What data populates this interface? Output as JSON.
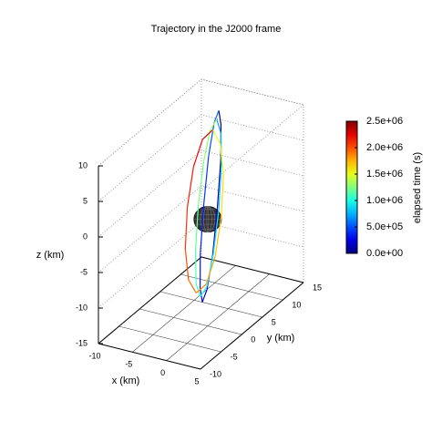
{
  "chart_data": {
    "type": "line3d",
    "title": "Trajectory in the J2000 frame",
    "xlabel": "x (km)",
    "ylabel": "y (km)",
    "zlabel": "z (km)",
    "xlim": [
      -10,
      5
    ],
    "ylim": [
      -10,
      15
    ],
    "zlim": [
      -15,
      10
    ],
    "xticks": [
      -10,
      -5,
      0,
      5
    ],
    "yticks": [
      -10,
      -5,
      0,
      5,
      10,
      15
    ],
    "zticks": [
      -15,
      -10,
      -5,
      0,
      5,
      10
    ],
    "grid": true,
    "colormap": "jet",
    "colorbar": {
      "label": "elapsed time (s)",
      "lim": [
        0,
        2500000
      ],
      "ticks": [
        {
          "value": 0,
          "label": "0.0e+00"
        },
        {
          "value": 500000,
          "label": "5.0e+05"
        },
        {
          "value": 1000000,
          "label": "1.0e+06"
        },
        {
          "value": 1500000,
          "label": "1.5e+06"
        },
        {
          "value": 2000000,
          "label": "2.0e+06"
        },
        {
          "value": 2500000,
          "label": "2.5e+06"
        }
      ]
    },
    "series": [
      {
        "x": [
          0,
          0.5,
          0.9,
          1,
          0.9,
          0.5,
          0,
          -0.5,
          -0.9,
          -1,
          -0.9,
          -0.5
        ],
        "y": [
          2.7,
          2.4,
          1.7,
          0.7,
          -0.3,
          -1,
          -1.3,
          -1,
          -0.3,
          0.7,
          1.7,
          2.4
        ],
        "z": [
          14,
          12.3,
          7.8,
          1.5,
          -4.8,
          -9.3,
          -11,
          -9.3,
          -4.8,
          1.5,
          7.8,
          12.3
        ],
        "t": [
          0,
          50000,
          100000,
          150000,
          200000,
          250000,
          300000,
          350000,
          400000,
          450000,
          500000,
          550000
        ]
      },
      {
        "x": [
          0,
          0.8,
          1.3,
          1.5,
          1.3,
          0.8,
          0,
          -0.8,
          -1.3,
          -1.5,
          -1.3,
          -0.8
        ],
        "y": [
          2.2,
          1.9,
          1.2,
          0.2,
          -0.8,
          -1.5,
          -1.8,
          -1.5,
          -0.8,
          0.2,
          1.2,
          1.9
        ],
        "z": [
          13,
          11.4,
          7.3,
          1.5,
          -4.3,
          -8.5,
          -10,
          -8.5,
          -4.3,
          1.5,
          7.3,
          11.4
        ],
        "t": [
          700000,
          760000,
          820000,
          880000,
          940000,
          1000000,
          1060000,
          1120000,
          1180000,
          1240000,
          1300000,
          1360000
        ]
      },
      {
        "x": [
          0,
          1.3,
          2.2,
          2.5,
          2.2,
          1.3,
          0,
          -1.3,
          -2.2,
          -2.5,
          -2.2,
          -1.3
        ],
        "y": [
          1.2,
          0.9,
          0.2,
          -0.8,
          -1.8,
          -2.5,
          -2.8,
          -2.5,
          -1.8,
          -0.8,
          0.2,
          0.9
        ],
        "z": [
          12,
          10.5,
          6.8,
          1.5,
          -3.8,
          -7.6,
          -9,
          -7.6,
          -3.8,
          1.5,
          6.8,
          10.5
        ],
        "t": [
          1500000,
          1570000,
          1640000,
          1710000,
          1780000,
          1850000,
          1920000,
          1990000,
          2060000,
          2130000,
          2200000,
          2270000
        ]
      }
    ]
  }
}
